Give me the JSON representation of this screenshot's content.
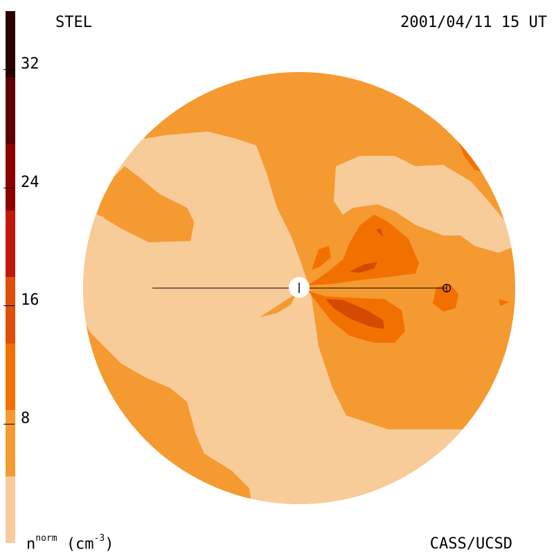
{
  "header": {
    "instrument": "STEL",
    "datetime": "2001/04/11 15 UT"
  },
  "footer": {
    "credit": "CASS/UCSD",
    "units_base": "n",
    "units_sup": "norm",
    "units_rest": "(cm",
    "units_exp": "-3",
    "units_close": ")"
  },
  "colorbar": {
    "tick_labels": [
      "32",
      "24",
      "16",
      "8"
    ],
    "tick_values": [
      32,
      24,
      16,
      8
    ],
    "colors": [
      "#f7cc99",
      "#f59a31",
      "#f27000",
      "#e04f0a",
      "#c0180a",
      "#8d0000",
      "#5e0000",
      "#2a0000"
    ],
    "min": 0,
    "max": 36
  },
  "colors": {
    "level_0": "#f7cc99",
    "level_1": "#f59a31",
    "level_2": "#f27000",
    "level_3": "#d34a00",
    "background": "#ffffff"
  }
}
